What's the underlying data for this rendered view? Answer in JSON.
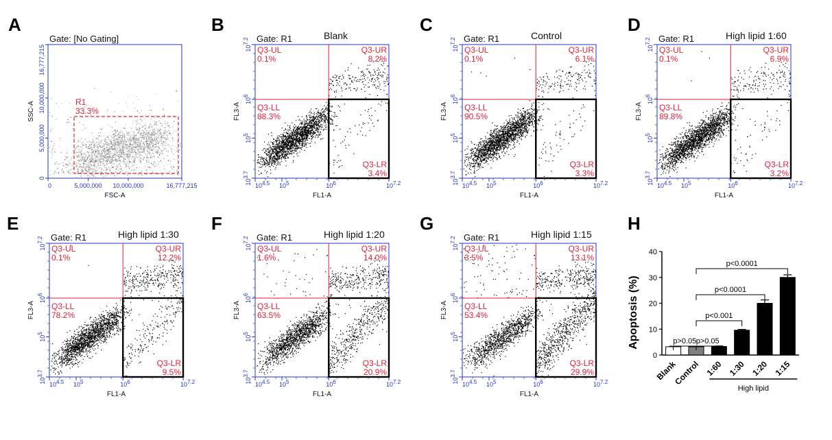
{
  "panels": [
    {
      "label": "A",
      "gate": "Gate: [No Gating]",
      "title": "",
      "gate_name": "R1",
      "gate_pct": "33.3%",
      "xlabel": "FSC-A",
      "ylabel": "SSC-A",
      "xticks": [
        "0",
        "5,000,000",
        "10,000,000",
        "16,777,215"
      ],
      "yticks": [
        "0",
        "5,000,000",
        "10,000,000",
        "16,777,215"
      ]
    },
    {
      "label": "B",
      "gate": "Gate: R1",
      "title": "Blank",
      "UL": "0.1%",
      "UR": "8.2%",
      "LL": "88.3%",
      "LR": "3.4%"
    },
    {
      "label": "C",
      "gate": "Gate: R1",
      "title": "Control",
      "UL": "0.1%",
      "UR": "6.1%",
      "LL": "90.5%",
      "LR": "3.3%"
    },
    {
      "label": "D",
      "gate": "Gate: R1",
      "title": "High lipid 1:60",
      "UL": "0.1%",
      "UR": "6.9%",
      "LL": "89.8%",
      "LR": "3.2%"
    },
    {
      "label": "E",
      "gate": "Gate: R1",
      "title": "High lipid 1:30",
      "UL": "0.1%",
      "UR": "12.2%",
      "LL": "78.2%",
      "LR": "9.5%"
    },
    {
      "label": "F",
      "gate": "Gate: R1",
      "title": "High lipid 1:20",
      "UL": "1.6%",
      "UR": "14.0%",
      "LL": "63.5%",
      "LR": "20.9%"
    },
    {
      "label": "G",
      "gate": "Gate: R1",
      "title": "High lipid 1:15",
      "UL": "3.5%",
      "UR": "13.1%",
      "LL": "53.4%",
      "LR": "29.9%"
    }
  ],
  "quad_names": {
    "UL": "Q3-UL",
    "UR": "Q3-UR",
    "LL": "Q3-LL",
    "LR": "Q3-LR"
  },
  "flow_axes": {
    "xlabel": "FL1-A",
    "ylabel": "FL3-A",
    "xticks": [
      "4.5",
      "5",
      "6",
      "7.2"
    ],
    "yticks": [
      "3.7",
      "5",
      "6",
      "7.2"
    ],
    "tick_base": "10"
  },
  "chart_data": {
    "type": "bar",
    "label": "H",
    "categories": [
      "Blank",
      "Control",
      "1:60",
      "1:30",
      "1:20",
      "1:15"
    ],
    "values": [
      3.2,
      3.2,
      3.3,
      9.6,
      20.0,
      30.0
    ],
    "errors": [
      0.2,
      0.2,
      0.2,
      0.3,
      1.3,
      1.0
    ],
    "colors": [
      "#ffffff",
      "#808080",
      "#000000",
      "#000000",
      "#000000",
      "#000000"
    ],
    "ylabel": "Apoptosis (%)",
    "ylim": [
      0,
      40
    ],
    "yticks": [
      0,
      10,
      20,
      30,
      40
    ],
    "group_label": "High lipid",
    "comparisons": [
      {
        "a": 0,
        "b": 1,
        "text": "p>0.05"
      },
      {
        "a": 1,
        "b": 2,
        "text": "p>0.05"
      },
      {
        "a": 1,
        "b": 3,
        "text": "p<0.001"
      },
      {
        "a": 1,
        "b": 4,
        "text": "p<0.0001"
      },
      {
        "a": 1,
        "b": 5,
        "text": "p<0.0001"
      }
    ]
  }
}
